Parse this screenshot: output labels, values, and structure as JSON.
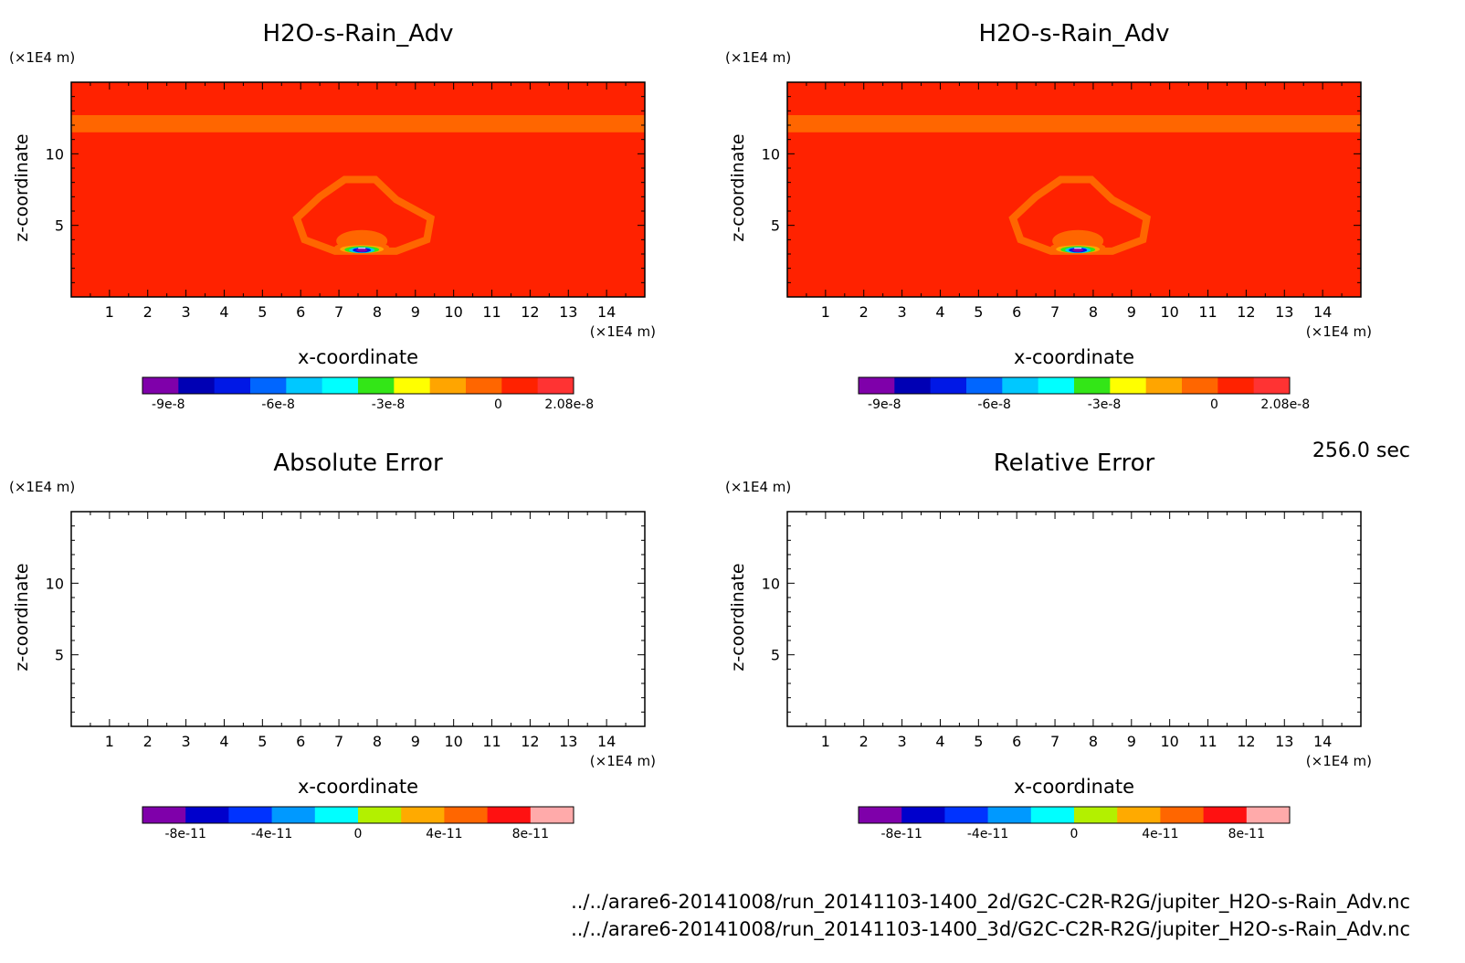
{
  "chart_data": [
    {
      "type": "heatmap",
      "title": "H2O-s-Rain_Adv",
      "xlabel": "x-coordinate",
      "ylabel": "z-coordinate",
      "x_unit": "(×1E4 m)",
      "y_unit": "(×1E4 m)",
      "xlim": [
        0,
        15
      ],
      "ylim": [
        0,
        15
      ],
      "x_ticks": [
        "1",
        "2",
        "3",
        "4",
        "5",
        "6",
        "7",
        "8",
        "9",
        "10",
        "11",
        "12",
        "13",
        "14"
      ],
      "y_ticks": [
        "5",
        "10"
      ],
      "background_value": 0,
      "layer_band": {
        "z_range": [
          11.5,
          12.7
        ],
        "value": 7e-09
      },
      "shell": {
        "x_range": [
          5.9,
          9.4
        ],
        "z_range": [
          3.2,
          8.2
        ],
        "value": 7e-09
      },
      "core": {
        "x_center": 7.6,
        "z_center": 3.4,
        "min_value": -9.5e-08,
        "max_value": 2.08e-08
      },
      "colorbar": {
        "tick_labels": [
          "-9e-8",
          "-6e-8",
          "-3e-8",
          "0",
          "2.08e-8"
        ],
        "colors": [
          "#7f00aa",
          "#0000b4",
          "#0018e6",
          "#0066ff",
          "#00c8ff",
          "#00ffff",
          "#33e617",
          "#ffff00",
          "#ffa500",
          "#ff6600",
          "#ff2200",
          "#ff3333"
        ]
      }
    },
    {
      "type": "heatmap",
      "title": "H2O-s-Rain_Adv",
      "xlabel": "x-coordinate",
      "ylabel": "z-coordinate",
      "x_unit": "(×1E4 m)",
      "y_unit": "(×1E4 m)",
      "xlim": [
        0,
        15
      ],
      "ylim": [
        0,
        15
      ],
      "x_ticks": [
        "1",
        "2",
        "3",
        "4",
        "5",
        "6",
        "7",
        "8",
        "9",
        "10",
        "11",
        "12",
        "13",
        "14"
      ],
      "y_ticks": [
        "5",
        "10"
      ],
      "background_value": 0,
      "layer_band": {
        "z_range": [
          11.5,
          12.7
        ],
        "value": 7e-09
      },
      "shell": {
        "x_range": [
          5.9,
          9.4
        ],
        "z_range": [
          3.2,
          8.2
        ],
        "value": 7e-09
      },
      "core": {
        "x_center": 7.6,
        "z_center": 3.4,
        "min_value": -9.5e-08,
        "max_value": 2.08e-08
      },
      "colorbar": {
        "tick_labels": [
          "-9e-8",
          "-6e-8",
          "-3e-8",
          "0",
          "2.08e-8"
        ],
        "colors": [
          "#7f00aa",
          "#0000b4",
          "#0018e6",
          "#0066ff",
          "#00c8ff",
          "#00ffff",
          "#33e617",
          "#ffff00",
          "#ffa500",
          "#ff6600",
          "#ff2200",
          "#ff3333"
        ]
      }
    },
    {
      "type": "heatmap",
      "title": "Absolute Error",
      "xlabel": "x-coordinate",
      "ylabel": "z-coordinate",
      "x_unit": "(×1E4 m)",
      "y_unit": "(×1E4 m)",
      "xlim": [
        0,
        15
      ],
      "ylim": [
        0,
        15
      ],
      "x_ticks": [
        "1",
        "2",
        "3",
        "4",
        "5",
        "6",
        "7",
        "8",
        "9",
        "10",
        "11",
        "12",
        "13",
        "14"
      ],
      "y_ticks": [
        "5",
        "10"
      ],
      "empty": true,
      "colorbar": {
        "tick_labels": [
          "-8e-11",
          "-4e-11",
          "0",
          "4e-11",
          "8e-11"
        ],
        "colors": [
          "#7f00aa",
          "#0000cc",
          "#0033ff",
          "#0099ff",
          "#00ffff",
          "#b3f000",
          "#ffaa00",
          "#ff6600",
          "#ff1111",
          "#ffaaaa"
        ]
      }
    },
    {
      "type": "heatmap",
      "title": "Relative Error",
      "xlabel": "x-coordinate",
      "ylabel": "z-coordinate",
      "x_unit": "(×1E4 m)",
      "y_unit": "(×1E4 m)",
      "xlim": [
        0,
        15
      ],
      "ylim": [
        0,
        15
      ],
      "x_ticks": [
        "1",
        "2",
        "3",
        "4",
        "5",
        "6",
        "7",
        "8",
        "9",
        "10",
        "11",
        "12",
        "13",
        "14"
      ],
      "y_ticks": [
        "5",
        "10"
      ],
      "empty": true,
      "colorbar": {
        "tick_labels": [
          "-8e-11",
          "-4e-11",
          "0",
          "4e-11",
          "8e-11"
        ],
        "colors": [
          "#7f00aa",
          "#0000cc",
          "#0033ff",
          "#0099ff",
          "#00ffff",
          "#b3f000",
          "#ffaa00",
          "#ff6600",
          "#ff1111",
          "#ffaaaa"
        ]
      }
    }
  ],
  "colors": {
    "background_field": "#ff2200",
    "band_field": "#ff6600"
  },
  "time_label": "256.0 sec",
  "file_paths": [
    "../../arare6-20141008/run_20141103-1400_2d/G2C-C2R-R2G/jupiter_H2O-s-Rain_Adv.nc",
    "../../arare6-20141008/run_20141103-1400_3d/G2C-C2R-R2G/jupiter_H2O-s-Rain_Adv.nc"
  ]
}
